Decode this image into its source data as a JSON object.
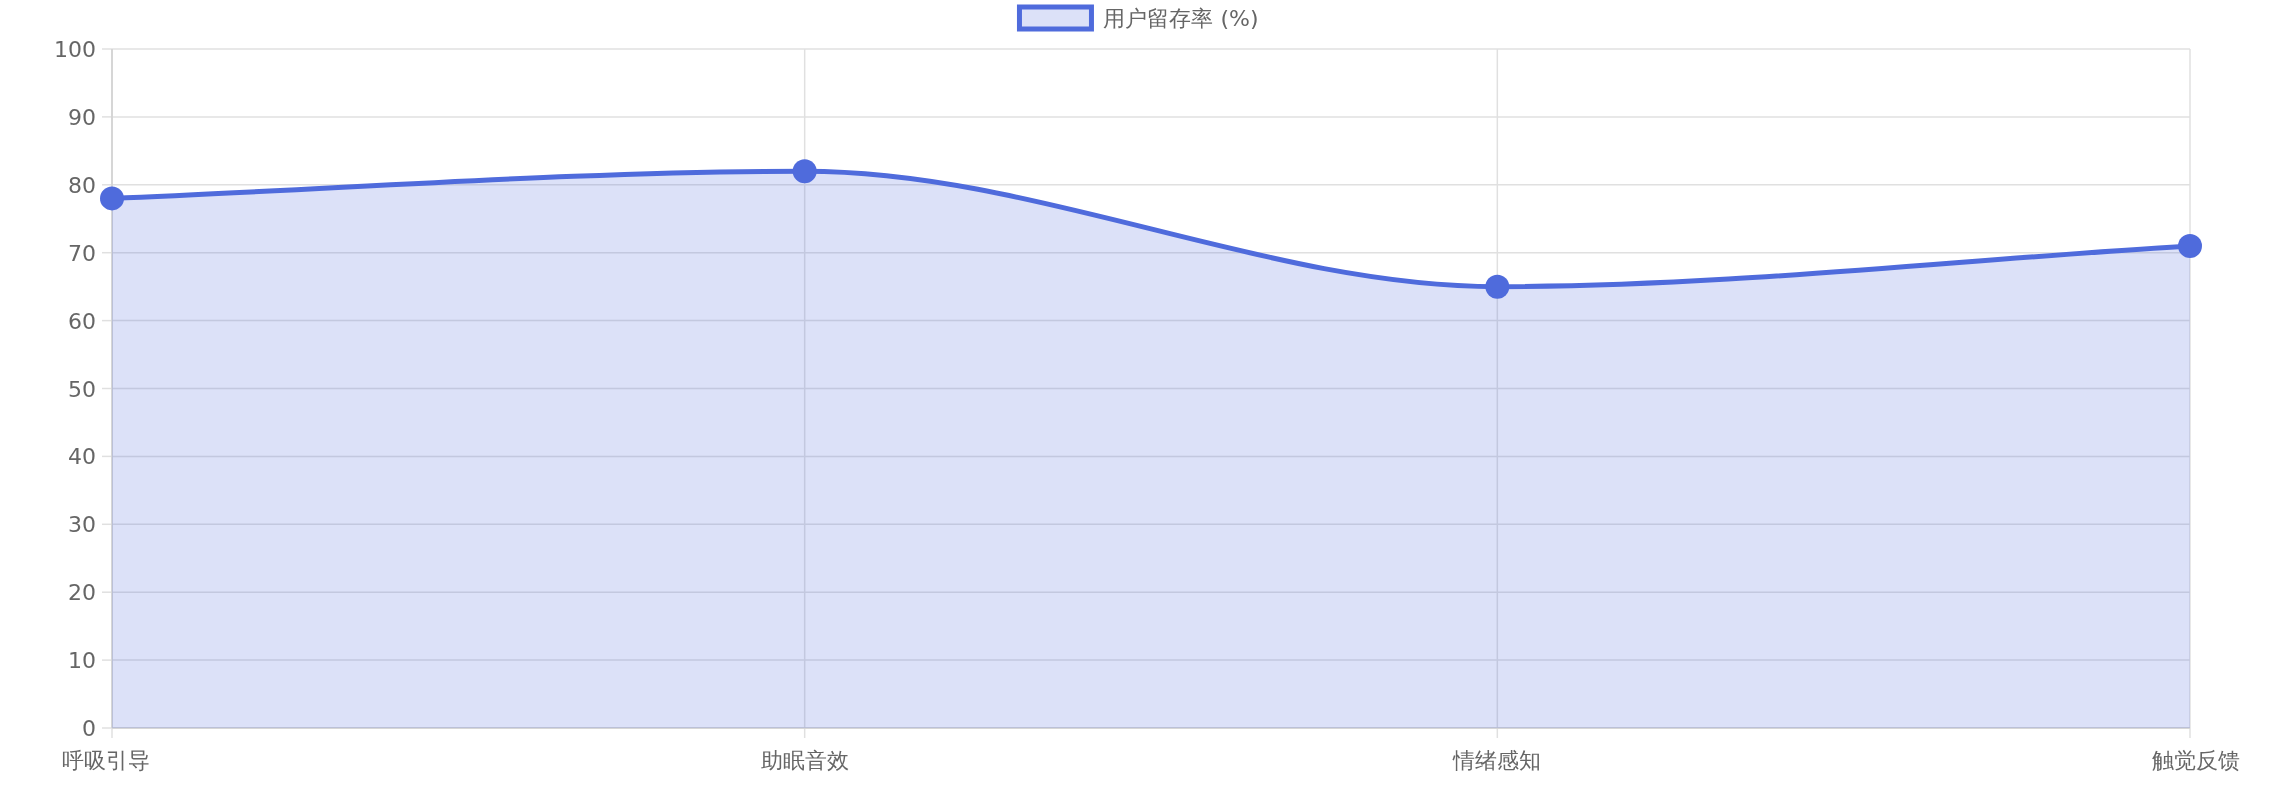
{
  "chart_data": {
    "type": "area",
    "categories": [
      "呼吸引导",
      "助眠音效",
      "情绪感知",
      "触觉反馈"
    ],
    "series": [
      {
        "name": "用户留存率 (%)",
        "color": "#4f6bdc",
        "values": [
          78,
          82,
          65,
          71
        ]
      }
    ],
    "ylim": [
      0,
      100
    ],
    "yticks": [
      0,
      10,
      20,
      30,
      40,
      50,
      60,
      70,
      80,
      90,
      100
    ],
    "grid": true,
    "legend": "top",
    "marker": "circle"
  }
}
